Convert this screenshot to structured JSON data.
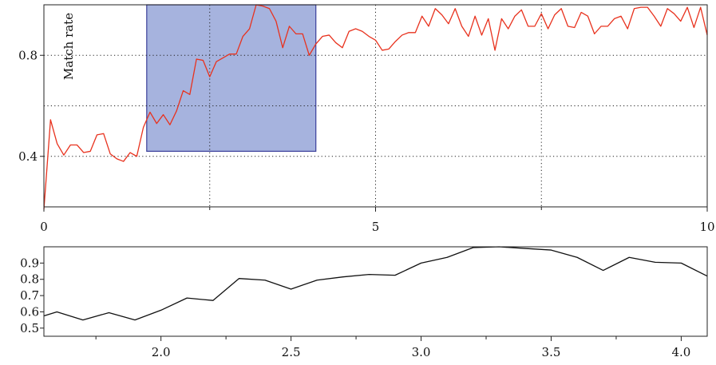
{
  "chart_data": [
    {
      "type": "line",
      "title": "",
      "xlabel": "",
      "ylabel": "Match rate",
      "xlim": [
        0,
        10
      ],
      "ylim": [
        0.2,
        1.0
      ],
      "xticks": [
        0,
        5,
        10
      ],
      "xtick_labels": [
        "0",
        "5",
        "10"
      ],
      "x_minor_gridlines": [
        2.5,
        7.5
      ],
      "yticks": [
        0.4,
        0.8
      ],
      "ytick_labels": [
        "0.4",
        "0.8"
      ],
      "y_minor_gridlines": [
        0.6
      ],
      "grid": true,
      "line_color": "#e8321e",
      "highlight": {
        "x_range": [
          1.55,
          4.1
        ],
        "y_range": [
          0.42,
          1.0
        ],
        "fill": "#a6b3de",
        "stroke": "#3b3f9a"
      },
      "series": [
        {
          "x": [
            0.0,
            0.1,
            0.2,
            0.3,
            0.4,
            0.5,
            0.6,
            0.7,
            0.8,
            0.9,
            1.0,
            1.1,
            1.2,
            1.3,
            1.4,
            1.5,
            1.6,
            1.7,
            1.8,
            1.9,
            2.0,
            2.1,
            2.2,
            2.3,
            2.4,
            2.5,
            2.6,
            2.7,
            2.8,
            2.9,
            3.0,
            3.1,
            3.2,
            3.3,
            3.4,
            3.5,
            3.6,
            3.7,
            3.8,
            3.9,
            4.0,
            4.1,
            4.2,
            4.3,
            4.4,
            4.5,
            4.6,
            4.7,
            4.8,
            4.9,
            5.0,
            5.1,
            5.2,
            5.3,
            5.4,
            5.5,
            5.6,
            5.7,
            5.8,
            5.9,
            6.0,
            6.1,
            6.2,
            6.3,
            6.4,
            6.5,
            6.6,
            6.7,
            6.8,
            6.9,
            7.0,
            7.1,
            7.2,
            7.3,
            7.4,
            7.5,
            7.6,
            7.7,
            7.8,
            7.9,
            8.0,
            8.1,
            8.2,
            8.3,
            8.4,
            8.5,
            8.6,
            8.7,
            8.8,
            8.9,
            9.0,
            9.1,
            9.2,
            9.3,
            9.4,
            9.5,
            9.6,
            9.7,
            9.8,
            9.9,
            10.0
          ],
          "values": [
            0.19,
            0.545,
            0.45,
            0.405,
            0.445,
            0.445,
            0.415,
            0.42,
            0.485,
            0.49,
            0.41,
            0.39,
            0.38,
            0.415,
            0.4,
            0.515,
            0.575,
            0.53,
            0.565,
            0.525,
            0.58,
            0.66,
            0.645,
            0.785,
            0.78,
            0.715,
            0.775,
            0.79,
            0.805,
            0.805,
            0.875,
            0.905,
            1.0,
            0.995,
            0.985,
            0.935,
            0.83,
            0.915,
            0.885,
            0.885,
            0.8,
            0.845,
            0.875,
            0.88,
            0.85,
            0.83,
            0.895,
            0.905,
            0.895,
            0.875,
            0.86,
            0.82,
            0.825,
            0.855,
            0.88,
            0.89,
            0.89,
            0.955,
            0.915,
            0.985,
            0.96,
            0.925,
            0.985,
            0.915,
            0.875,
            0.955,
            0.88,
            0.945,
            0.82,
            0.945,
            0.905,
            0.955,
            0.98,
            0.915,
            0.915,
            0.965,
            0.905,
            0.96,
            0.985,
            0.915,
            0.91,
            0.97,
            0.955,
            0.885,
            0.915,
            0.915,
            0.945,
            0.955,
            0.905,
            0.985,
            0.99,
            0.99,
            0.955,
            0.915,
            0.985,
            0.965,
            0.935,
            0.99,
            0.91,
            0.99,
            0.88
          ]
        }
      ]
    },
    {
      "type": "line",
      "title": "",
      "xlabel": "",
      "ylabel": "",
      "xlim": [
        1.55,
        4.1
      ],
      "ylim": [
        0.45,
        1.0
      ],
      "xticks": [
        2.0,
        2.5,
        3.0,
        3.5,
        4.0
      ],
      "xtick_labels": [
        "2.0",
        "2.5",
        "3.0",
        "3.5",
        "4.0"
      ],
      "x_minor_ticks": [
        1.75,
        2.25,
        2.75,
        3.25,
        3.75
      ],
      "yticks": [
        0.5,
        0.6,
        0.7,
        0.8,
        0.9
      ],
      "ytick_labels": [
        "0.5",
        "0.6",
        "0.7",
        "0.8",
        "0.9"
      ],
      "grid": false,
      "line_color": "#111111",
      "series": [
        {
          "x": [
            1.55,
            1.6,
            1.7,
            1.8,
            1.9,
            2.0,
            2.1,
            2.2,
            2.3,
            2.4,
            2.5,
            2.6,
            2.7,
            2.8,
            2.9,
            3.0,
            3.1,
            3.2,
            3.3,
            3.4,
            3.5,
            3.6,
            3.7,
            3.8,
            3.9,
            4.0,
            4.1
          ],
          "values": [
            0.575,
            0.6,
            0.55,
            0.595,
            0.55,
            0.61,
            0.685,
            0.67,
            0.805,
            0.795,
            0.74,
            0.795,
            0.815,
            0.83,
            0.825,
            0.9,
            0.935,
            0.995,
            1.0,
            0.99,
            0.98,
            0.935,
            0.855,
            0.935,
            0.905,
            0.9,
            0.82
          ]
        }
      ]
    }
  ]
}
